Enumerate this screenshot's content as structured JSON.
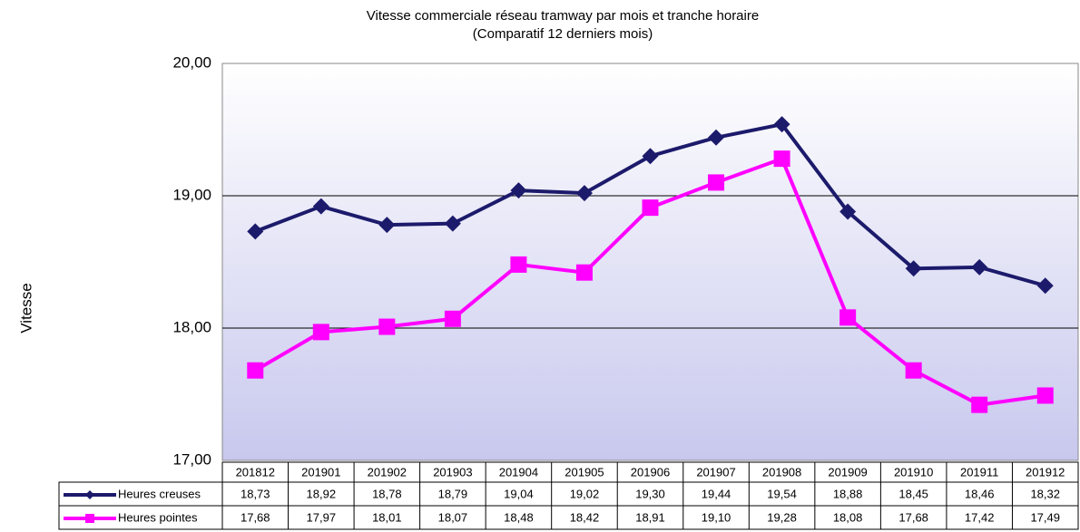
{
  "chart_data": {
    "type": "line",
    "title": "Vitesse commerciale réseau tramway par mois et tranche horaire",
    "subtitle": "(Comparatif 12 derniers mois)",
    "y_label": "Vitesse",
    "categories": [
      "201812",
      "201901",
      "201902",
      "201903",
      "201904",
      "201905",
      "201906",
      "201907",
      "201908",
      "201909",
      "201910",
      "201911",
      "201912"
    ],
    "series": [
      {
        "name": "Heures creuses",
        "color": "#1c1a6b",
        "marker": "diamond",
        "values": [
          18.73,
          18.92,
          18.78,
          18.79,
          19.04,
          19.02,
          19.3,
          19.44,
          19.54,
          18.88,
          18.45,
          18.46,
          18.32
        ],
        "value_labels": [
          "18,73",
          "18,92",
          "18,78",
          "18,79",
          "19,04",
          "19,02",
          "19,30",
          "19,44",
          "19,54",
          "18,88",
          "18,45",
          "18,46",
          "18,32"
        ]
      },
      {
        "name": "Heures pointes",
        "color": "#ff00ff",
        "marker": "square",
        "values": [
          17.68,
          17.97,
          18.01,
          18.07,
          18.48,
          18.42,
          18.91,
          19.1,
          19.28,
          18.08,
          17.68,
          17.42,
          17.49
        ],
        "value_labels": [
          "17,68",
          "17,97",
          "18,01",
          "18,07",
          "18,48",
          "18,42",
          "18,91",
          "19,10",
          "19,28",
          "18,08",
          "17,68",
          "17,42",
          "17,49"
        ]
      }
    ],
    "ylim": [
      17,
      20
    ],
    "yticks": [
      {
        "value": 17,
        "label": "17,00"
      },
      {
        "value": 18,
        "label": "18,00"
      },
      {
        "value": 19,
        "label": "19,00"
      },
      {
        "value": 20,
        "label": "20,00"
      }
    ],
    "grid": true
  }
}
